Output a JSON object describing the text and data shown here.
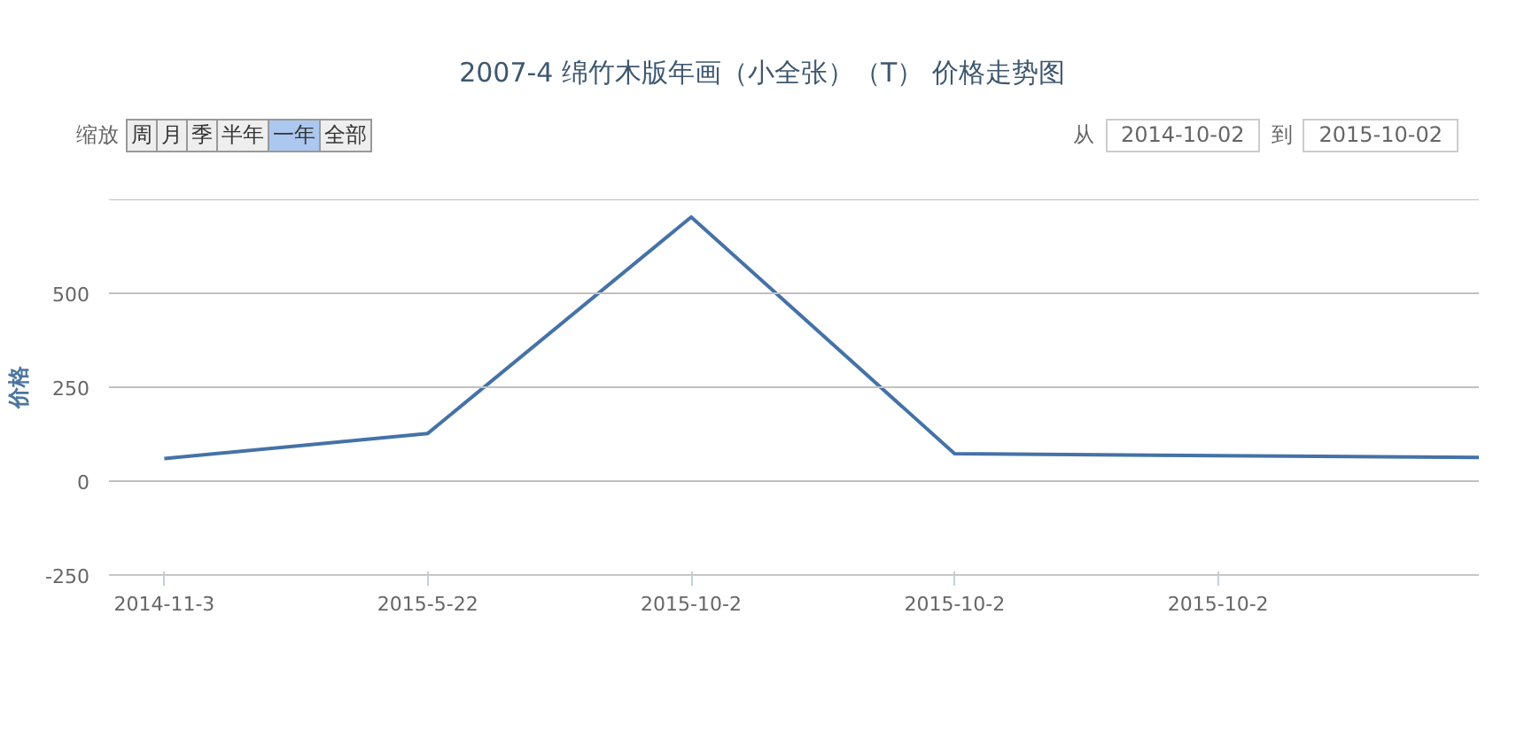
{
  "chart_data": {
    "type": "line",
    "title": "2007-4 绵竹木版年画（小全张）（T） 价格走势图",
    "ylabel": "价格",
    "categories": [
      "2014-11-3",
      "2015-5-22",
      "2015-10-2",
      "2015-10-2",
      "2015-10-2",
      null
    ],
    "series": [
      {
        "color": "#4572a7",
        "values": [
          60,
          127,
          703,
          73,
          68,
          63
        ]
      }
    ],
    "ylim": [
      -250,
      750
    ],
    "yticks": [
      -250,
      0,
      250,
      500,
      {
        "value": 750,
        "label": null
      }
    ],
    "grid": "y",
    "marker": "none",
    "line_style": "solid",
    "annotations": [
      "缩放",
      "周",
      "月",
      "季",
      "半年",
      "一年",
      "全部",
      "从",
      "2014-10-02",
      "到",
      "2015-10-02"
    ]
  }
}
